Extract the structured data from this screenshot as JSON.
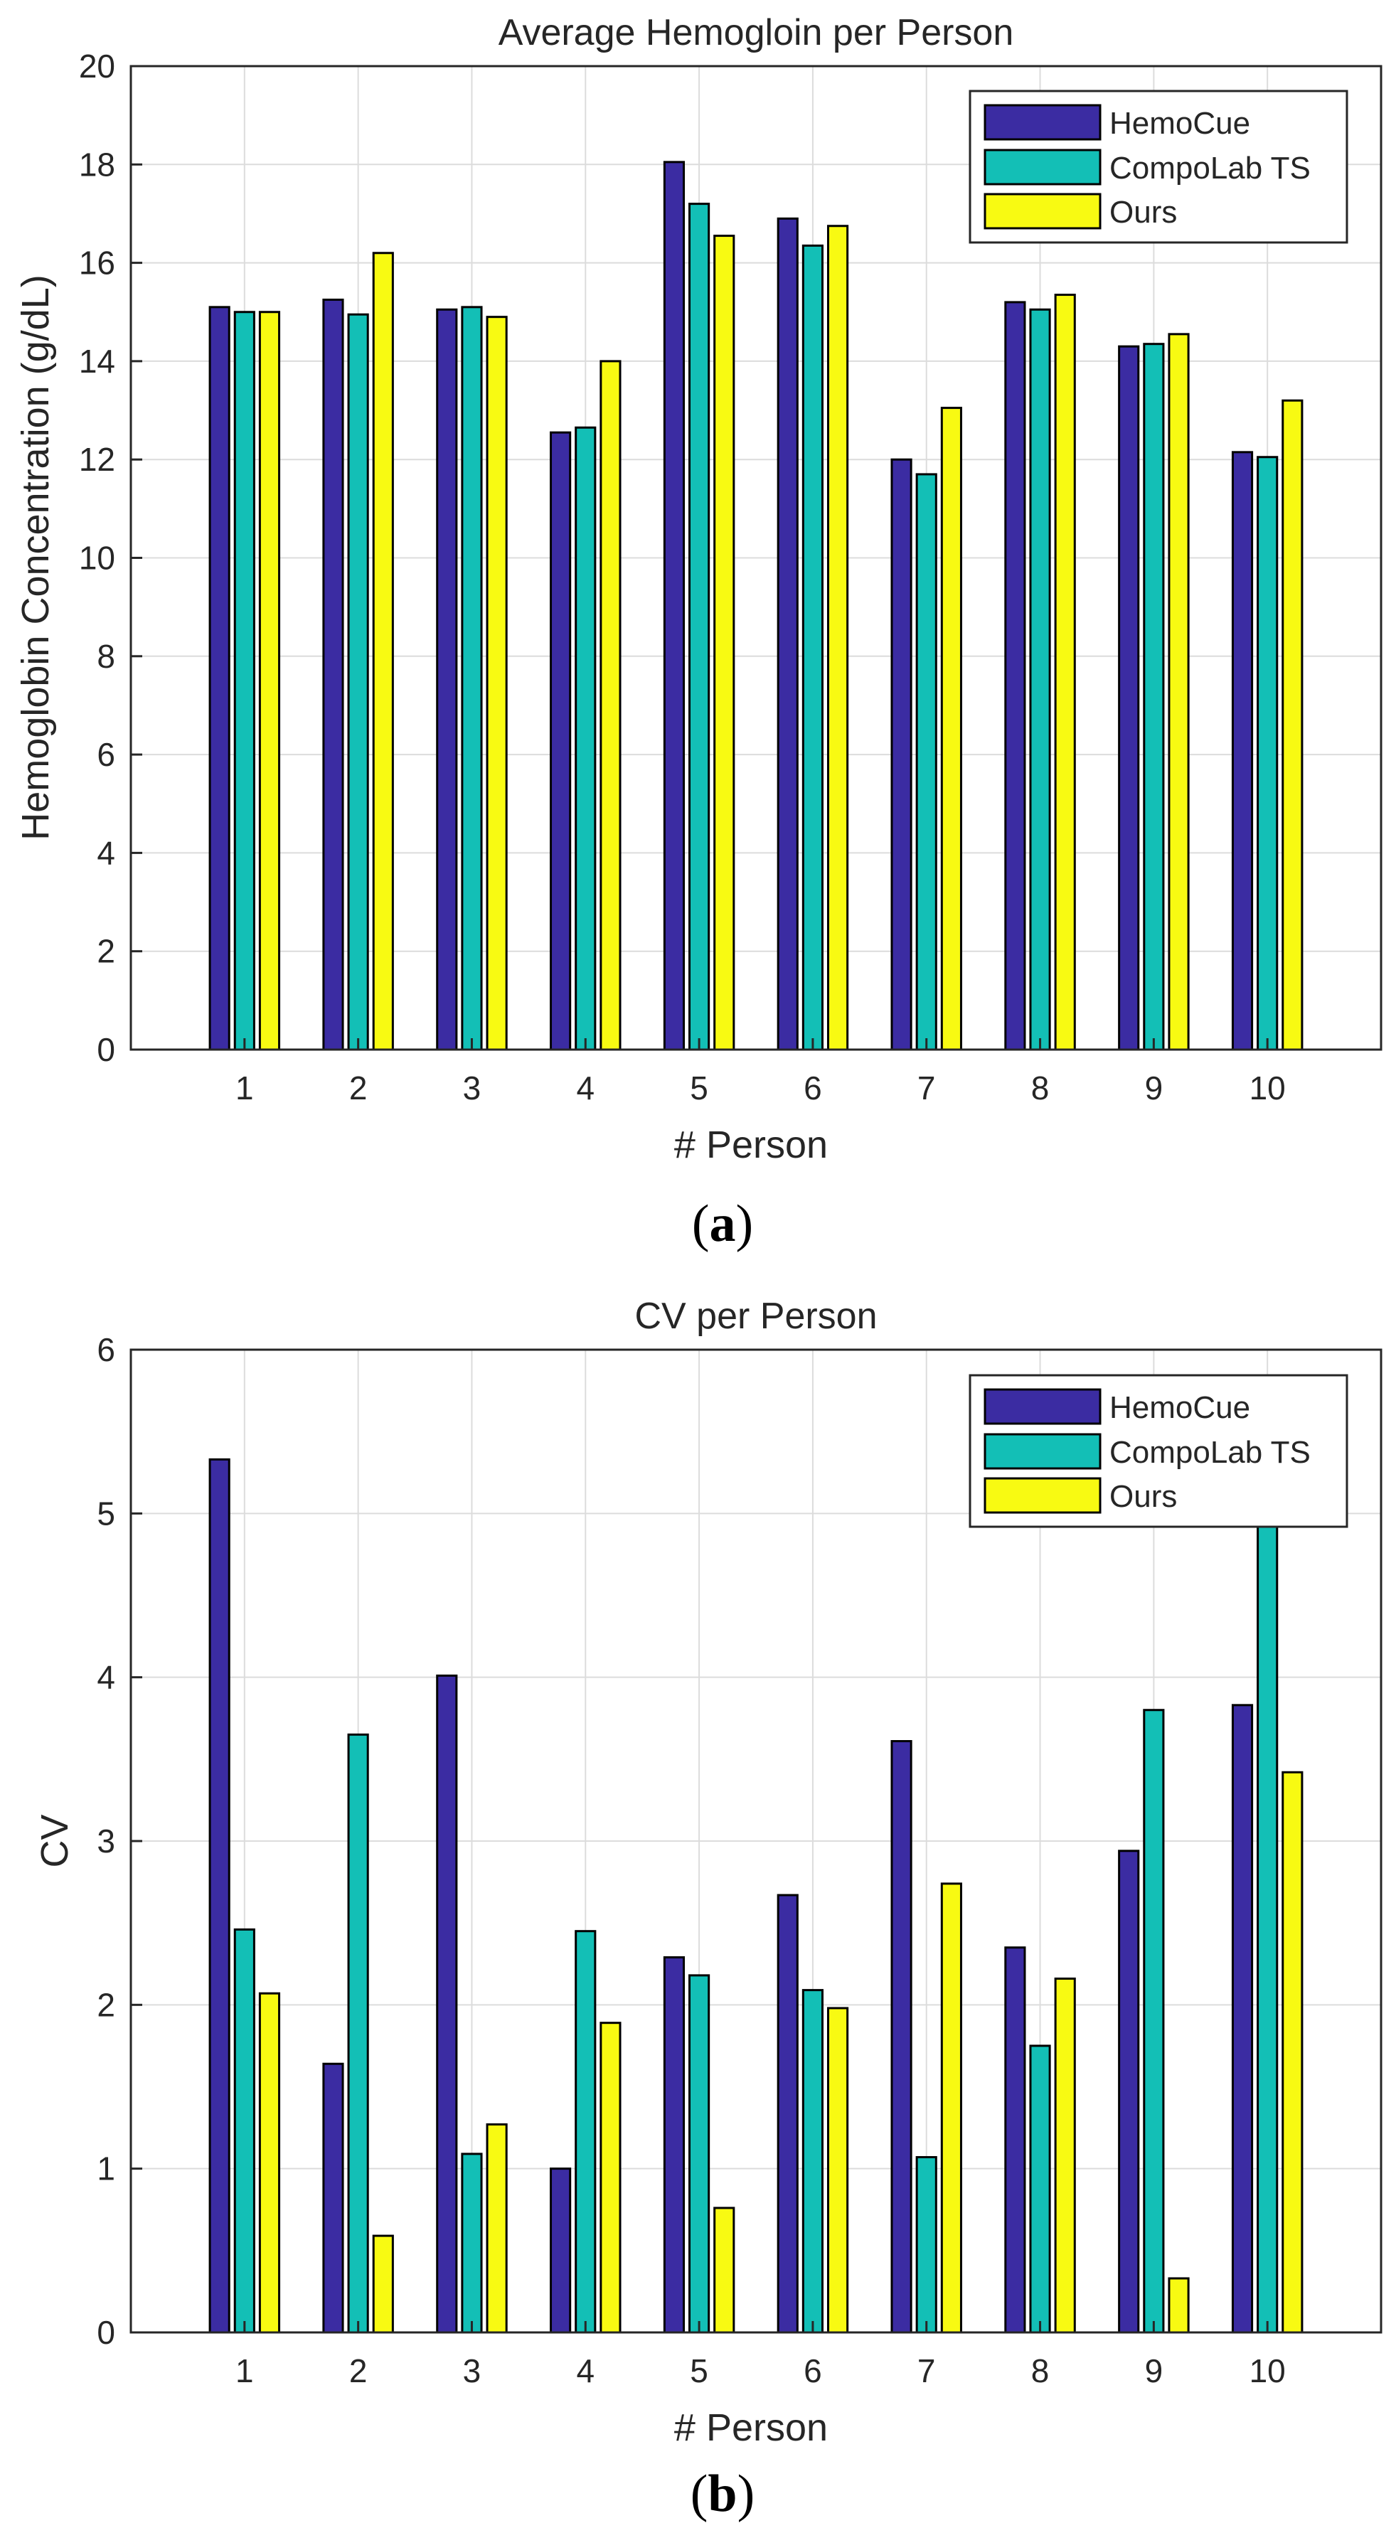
{
  "chart_data": [
    {
      "type": "bar",
      "title": "Average Hemogloin per Person",
      "xlabel": "# Person",
      "ylabel": "Hemoglobin Concentration (g/dL)",
      "caption": {
        "open": "(",
        "letter": "a",
        "close": ")"
      },
      "categories": [
        "1",
        "2",
        "3",
        "4",
        "5",
        "6",
        "7",
        "8",
        "9",
        "10"
      ],
      "ylim": [
        0,
        20
      ],
      "yticks": [
        0,
        2,
        4,
        6,
        8,
        10,
        12,
        14,
        16,
        18,
        20
      ],
      "ytick_labels": [
        "0",
        "2",
        "4",
        "6",
        "8",
        "10",
        "12",
        "14",
        "16",
        "18",
        "20"
      ],
      "grid": true,
      "legend_position": "top-right",
      "series": [
        {
          "name": "HemoCue",
          "color": "#3b2ca2",
          "values": [
            15.1,
            15.25,
            15.05,
            12.55,
            18.05,
            16.9,
            12.0,
            15.2,
            14.3,
            12.15
          ]
        },
        {
          "name": "CompoLab TS",
          "color": "#13bfb6",
          "values": [
            15.0,
            14.95,
            15.1,
            12.65,
            17.2,
            16.35,
            11.7,
            15.05,
            14.35,
            12.05
          ]
        },
        {
          "name": "Ours",
          "color": "#f8fa12",
          "values": [
            15.0,
            16.2,
            14.9,
            14.0,
            16.55,
            16.75,
            13.05,
            15.35,
            14.55,
            13.2
          ]
        }
      ]
    },
    {
      "type": "bar",
      "title": "CV per Person",
      "xlabel": "# Person",
      "ylabel": "CV",
      "caption": {
        "open": "(",
        "letter": "b",
        "close": ")"
      },
      "categories": [
        "1",
        "2",
        "3",
        "4",
        "5",
        "6",
        "7",
        "8",
        "9",
        "10"
      ],
      "ylim": [
        0,
        6
      ],
      "yticks": [
        0,
        1,
        2,
        3,
        4,
        5,
        6
      ],
      "ytick_labels": [
        "0",
        "1",
        "2",
        "3",
        "4",
        "5",
        "6"
      ],
      "grid": true,
      "legend_position": "top-right",
      "series": [
        {
          "name": "HemoCue",
          "color": "#3b2ca2",
          "values": [
            5.33,
            1.64,
            4.01,
            1.0,
            2.29,
            2.67,
            3.61,
            2.35,
            2.94,
            3.83
          ]
        },
        {
          "name": "CompoLab TS",
          "color": "#13bfb6",
          "values": [
            2.46,
            3.65,
            1.09,
            2.45,
            2.18,
            2.09,
            1.07,
            1.75,
            3.8,
            4.97
          ]
        },
        {
          "name": "Ours",
          "color": "#f8fa12",
          "values": [
            2.07,
            0.59,
            1.27,
            1.89,
            0.76,
            1.98,
            2.74,
            2.16,
            0.33,
            3.42
          ]
        }
      ]
    }
  ]
}
